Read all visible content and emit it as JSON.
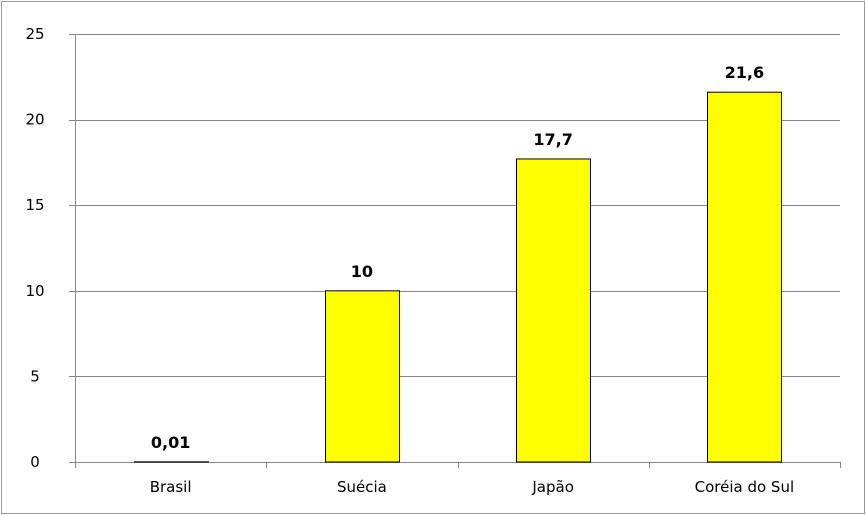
{
  "chart_data": {
    "type": "bar",
    "title": "",
    "xlabel": "",
    "ylabel": "",
    "categories": [
      "Brasil",
      "Suécia",
      "Japão",
      "Coréia do Sul"
    ],
    "values": [
      0.01,
      10,
      17.7,
      21.6
    ],
    "value_labels": [
      "0,01",
      "10",
      "17,7",
      "21,6"
    ],
    "ylim": [
      0,
      25
    ],
    "y_ticks": [
      0,
      5,
      10,
      15,
      20,
      25
    ],
    "y_tick_labels": [
      "0",
      "5",
      "10",
      "15",
      "20",
      "25"
    ],
    "grid": true,
    "legend": "none",
    "bar_color": "#FFFF00",
    "bar_edge_color": "#000000",
    "grid_color": "#868686"
  }
}
